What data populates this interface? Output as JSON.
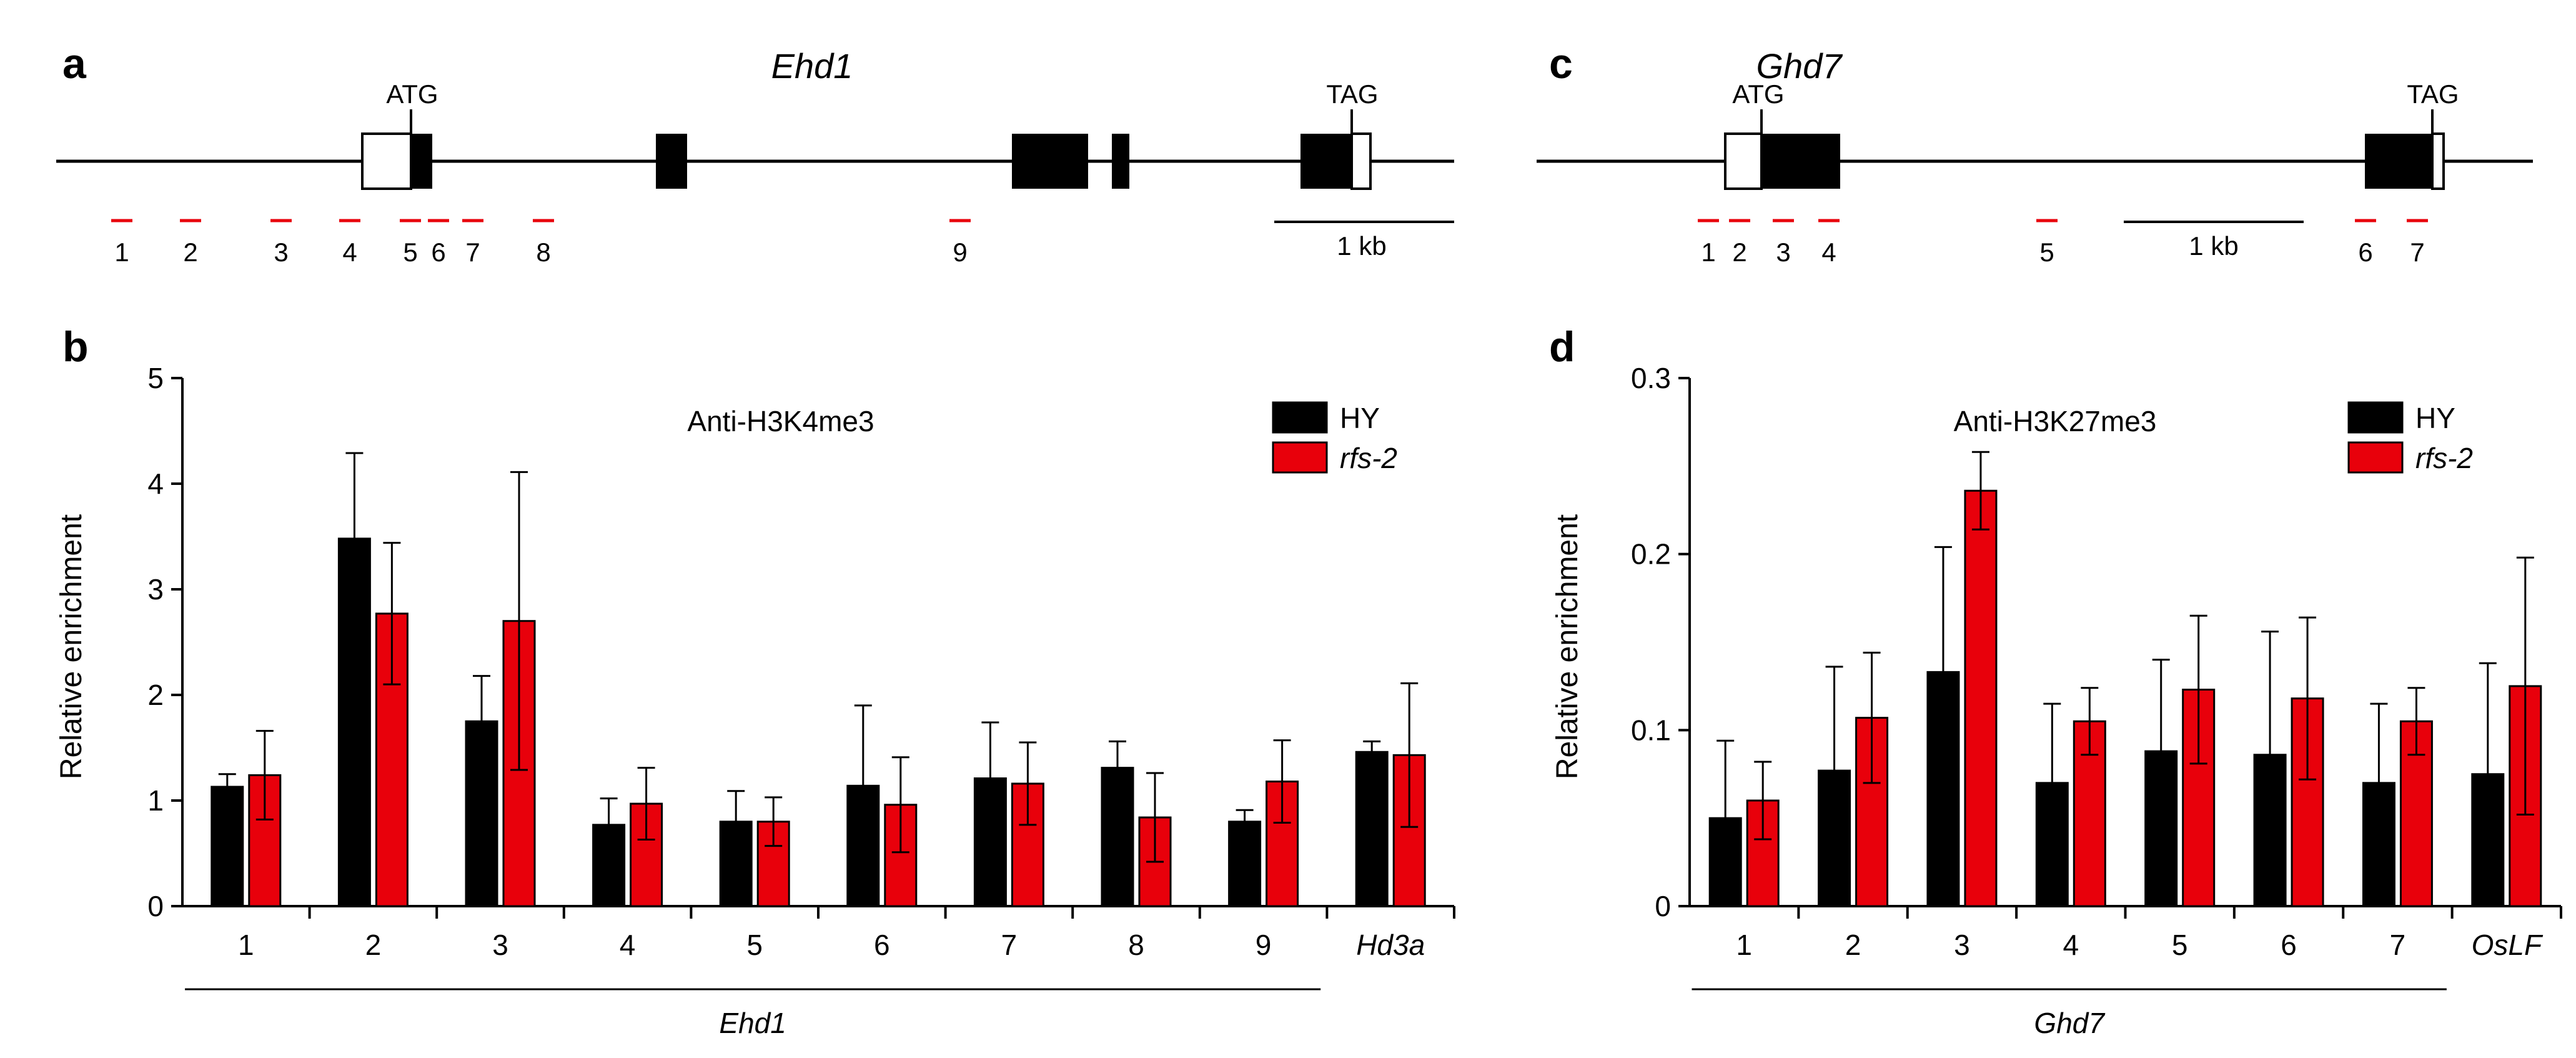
{
  "colors": {
    "hy": "#000000",
    "rfs2": "#e8000b",
    "primer": "#e8000b",
    "line": "#000000"
  },
  "gene_maps": [
    {
      "panel": "a",
      "gene": "Ehd1",
      "start_codon": "ATG",
      "stop_codon": "TAG",
      "scale_label": "1 kb",
      "primer_labels": [
        "1",
        "2",
        "3",
        "4",
        "5",
        "6",
        "7",
        "8",
        "9"
      ]
    },
    {
      "panel": "c",
      "gene": "Ghd7",
      "start_codon": "ATG",
      "stop_codon": "TAG",
      "scale_label": "1 kb",
      "primer_labels": [
        "1",
        "2",
        "3",
        "4",
        "5",
        "6",
        "7"
      ]
    }
  ],
  "chart_data": [
    {
      "panel": "b",
      "type": "bar",
      "title": "Anti-H3K4me3",
      "ylabel": "Relative enrichment",
      "xlabel": "",
      "ylim": [
        0,
        5
      ],
      "yticks": [
        "0",
        "1",
        "2",
        "3",
        "4",
        "5"
      ],
      "categories": [
        "1",
        "2",
        "3",
        "4",
        "5",
        "6",
        "7",
        "8",
        "9",
        "Hd3a"
      ],
      "italic_categories": [
        "Hd3a"
      ],
      "group_label": "Ehd1",
      "legend_position": "top-right",
      "series": [
        {
          "name": "HY",
          "italic": false,
          "values": [
            1.13,
            3.48,
            1.75,
            0.77,
            0.8,
            1.14,
            1.21,
            1.31,
            0.8,
            1.46
          ],
          "errors": [
            0.12,
            0.81,
            0.43,
            0.25,
            0.29,
            0.76,
            0.53,
            0.25,
            0.11,
            0.1
          ]
        },
        {
          "name": "rfs-2",
          "italic": true,
          "values": [
            1.24,
            2.77,
            2.7,
            0.97,
            0.8,
            0.96,
            1.16,
            0.84,
            1.18,
            1.43
          ],
          "errors": [
            0.42,
            0.67,
            1.41,
            0.34,
            0.23,
            0.45,
            0.39,
            0.42,
            0.39,
            0.68
          ]
        }
      ]
    },
    {
      "panel": "d",
      "type": "bar",
      "title": "Anti-H3K27me3",
      "ylabel": "Relative enrichment",
      "xlabel": "",
      "ylim": [
        0,
        0.3
      ],
      "yticks": [
        "0",
        "0.1",
        "0.2",
        "0.3"
      ],
      "categories": [
        "1",
        "2",
        "3",
        "4",
        "5",
        "6",
        "7",
        "OsLF"
      ],
      "italic_categories": [
        "OsLF"
      ],
      "group_label": "Ghd7",
      "legend_position": "top-right",
      "series": [
        {
          "name": "HY",
          "italic": false,
          "values": [
            0.05,
            0.077,
            0.133,
            0.07,
            0.088,
            0.086,
            0.07,
            0.075
          ],
          "errors": [
            0.044,
            0.059,
            0.071,
            0.045,
            0.052,
            0.07,
            0.045,
            0.063
          ]
        },
        {
          "name": "rfs-2",
          "italic": true,
          "values": [
            0.06,
            0.107,
            0.236,
            0.105,
            0.123,
            0.118,
            0.105,
            0.125
          ],
          "errors": [
            0.022,
            0.037,
            0.022,
            0.019,
            0.042,
            0.046,
            0.019,
            0.073
          ]
        }
      ]
    }
  ]
}
